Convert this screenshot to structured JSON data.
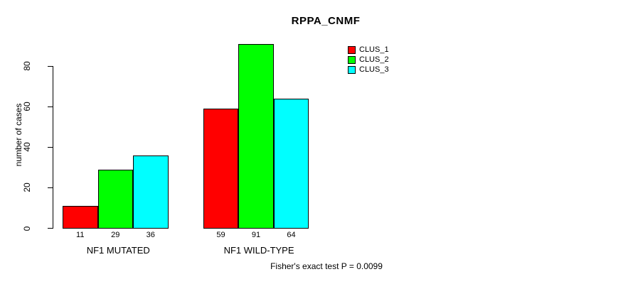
{
  "chart": {
    "title": "RPPA_CNMF",
    "ylabel": "number of cases",
    "footer": "Fisher's exact test P = 0.0099"
  },
  "chart_data": {
    "type": "bar",
    "title": "RPPA_CNMF",
    "xlabel": "",
    "ylabel": "number of cases",
    "categories": [
      "NF1 MUTATED",
      "NF1 WILD-TYPE"
    ],
    "series": [
      {
        "name": "CLUS_1",
        "color": "#ff0000",
        "values": [
          11,
          59
        ]
      },
      {
        "name": "CLUS_2",
        "color": "#00ff00",
        "values": [
          29,
          91
        ]
      },
      {
        "name": "CLUS_3",
        "color": "#00ffff",
        "values": [
          36,
          64
        ]
      }
    ],
    "bar_value_labels": [
      [
        11,
        29,
        36
      ],
      [
        59,
        91,
        64
      ]
    ],
    "y_ticks": [
      0,
      20,
      40,
      60,
      80
    ],
    "ylim": [
      0,
      91
    ],
    "grid": false,
    "legend_position": "top-right",
    "annotation": "Fisher's exact test P = 0.0099"
  }
}
